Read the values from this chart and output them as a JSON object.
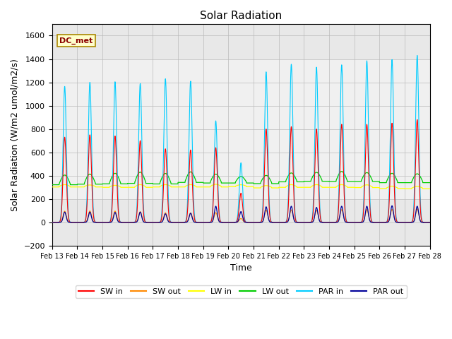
{
  "title": "Solar Radiation",
  "xlabel": "Time",
  "ylabel": "Solar Radiation (W/m2 umol/m2/s)",
  "ylim": [
    -200,
    1700
  ],
  "yticks": [
    -200,
    0,
    200,
    400,
    600,
    800,
    1000,
    1200,
    1400,
    1600
  ],
  "xlim": [
    13,
    28
  ],
  "annotation_text": "DC_met",
  "bg_band_ymin": 200,
  "bg_band_ymax": 1400,
  "colors": {
    "sw_in": "#ff0000",
    "sw_out": "#ff8800",
    "lw_in": "#ffff00",
    "lw_out": "#00cc00",
    "par_in": "#00ccff",
    "par_out": "#000099"
  },
  "labels": [
    "SW in",
    "SW out",
    "LW in",
    "LW out",
    "PAR in",
    "PAR out"
  ],
  "plot_bg": "#e8e8e8",
  "band_color": "#f0f0f0",
  "title_fontsize": 11,
  "axis_fontsize": 9,
  "tick_fontsize": 8
}
